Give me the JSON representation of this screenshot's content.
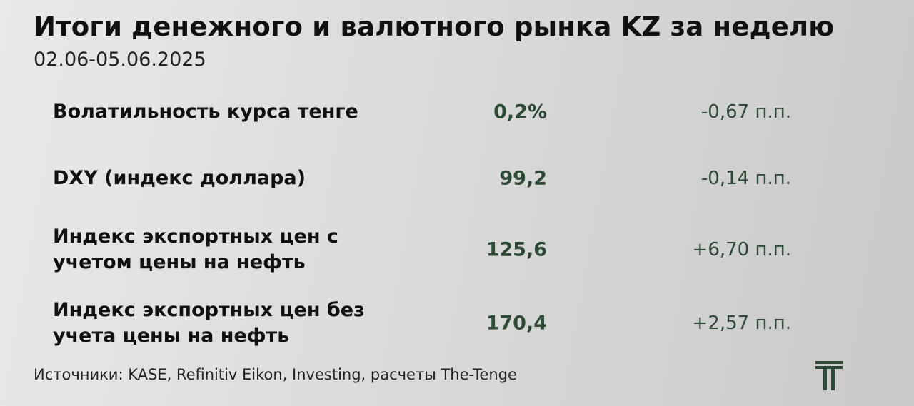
{
  "header": {
    "title": "Итоги денежного и валютного рынка KZ за неделю",
    "subtitle": "02.06-05.06.2025"
  },
  "table": {
    "rows": [
      {
        "label": [
          "Волатильность курса тенге"
        ],
        "value": "0,2%",
        "change": "-0,67 п.п."
      },
      {
        "label": [
          "DXY (индекс доллара)"
        ],
        "value": "99,2",
        "change": "-0,14 п.п."
      },
      {
        "label": [
          "Индекс экспортных цен с",
          "учетом цены на нефть"
        ],
        "value": "125,6",
        "change": "+6,70 п.п."
      },
      {
        "label": [
          "Индекс экспортных цен без",
          "учета цены на нефть"
        ],
        "value": "170,4",
        "change": "+2,57 п.п."
      }
    ]
  },
  "footer": {
    "source": "Источники: KASE, Refinitiv Eikon, Investing, расчеты The-Tenge"
  }
}
